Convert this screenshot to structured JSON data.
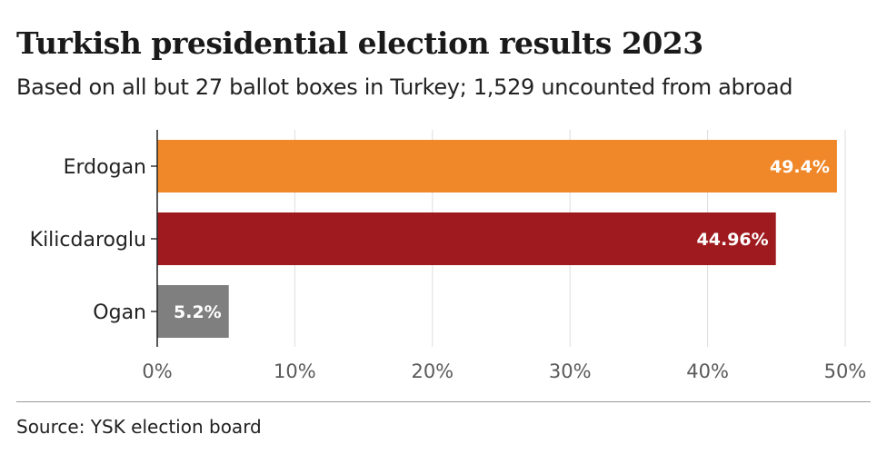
{
  "chart_data": {
    "type": "bar",
    "orientation": "horizontal",
    "title": "Turkish presidential election results 2023",
    "subtitle": "Based on all but 27 ballot boxes in Turkey; 1,529 uncounted from abroad",
    "categories": [
      "Erdogan",
      "Kilicdaroglu",
      "Ogan"
    ],
    "values": [
      49.4,
      44.96,
      5.2
    ],
    "value_labels": [
      "49.4%",
      "44.96%",
      "5.2%"
    ],
    "colors": [
      "#f0882a",
      "#9e1a1e",
      "#7f7f80"
    ],
    "x_ticks": [
      0,
      10,
      20,
      30,
      40,
      50
    ],
    "x_tick_labels": [
      "0%",
      "10%",
      "20%",
      "30%",
      "40%",
      "50%"
    ],
    "xlim": [
      0,
      50
    ],
    "grid": true,
    "source": "Source: YSK election board"
  }
}
